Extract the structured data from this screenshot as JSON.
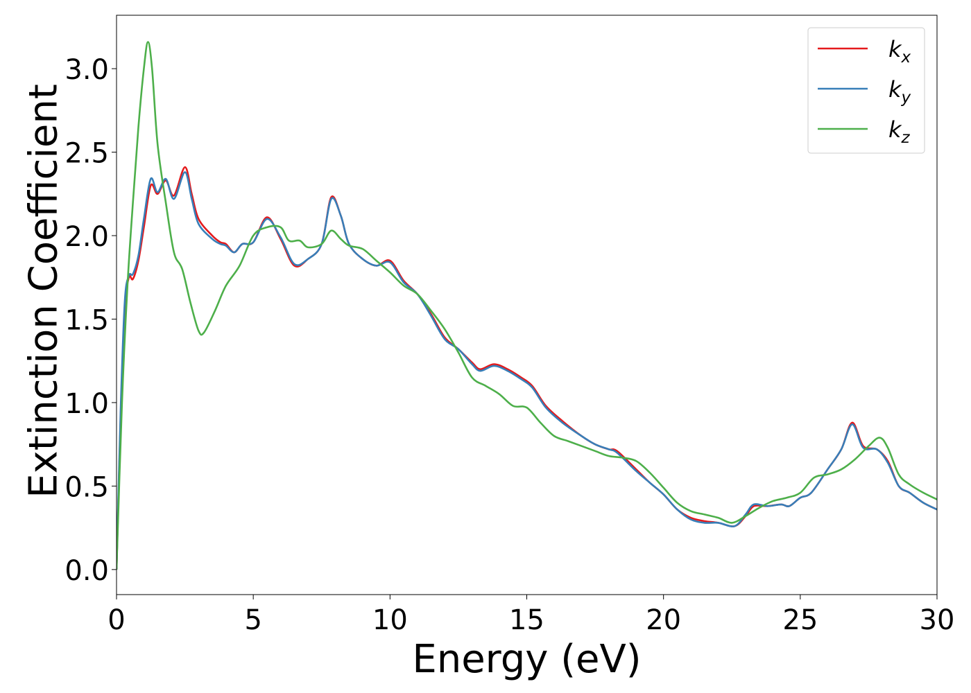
{
  "chart_data": {
    "type": "line",
    "title": "",
    "xlabel": "Energy (eV)",
    "ylabel": "Extinction Coefficient",
    "xlim": [
      0,
      30
    ],
    "ylim": [
      -0.15,
      3.32
    ],
    "xticks": [
      0,
      5,
      10,
      15,
      20,
      25,
      30
    ],
    "xtick_labels": [
      "0",
      "5",
      "10",
      "15",
      "20",
      "25",
      "30"
    ],
    "yticks": [
      0.0,
      0.5,
      1.0,
      1.5,
      2.0,
      2.5,
      3.0
    ],
    "ytick_labels": [
      "0.0",
      "0.5",
      "1.0",
      "1.5",
      "2.0",
      "2.5",
      "3.0"
    ],
    "grid": false,
    "legend_position": "top-right",
    "series": [
      {
        "name": "k_x",
        "legend_base": "k",
        "legend_sub": "x",
        "color": "#e41a1c",
        "points": [
          [
            0,
            0
          ],
          [
            0.15,
            0.9
          ],
          [
            0.3,
            1.55
          ],
          [
            0.45,
            1.75
          ],
          [
            0.6,
            1.74
          ],
          [
            0.8,
            1.85
          ],
          [
            1.0,
            2.05
          ],
          [
            1.25,
            2.3
          ],
          [
            1.5,
            2.25
          ],
          [
            1.8,
            2.33
          ],
          [
            2.1,
            2.24
          ],
          [
            2.5,
            2.41
          ],
          [
            2.75,
            2.25
          ],
          [
            3.0,
            2.1
          ],
          [
            3.5,
            2.0
          ],
          [
            3.8,
            1.96
          ],
          [
            4.0,
            1.95
          ],
          [
            4.3,
            1.9
          ],
          [
            4.6,
            1.95
          ],
          [
            5.0,
            1.96
          ],
          [
            5.5,
            2.11
          ],
          [
            6.0,
            1.98
          ],
          [
            6.5,
            1.82
          ],
          [
            7.0,
            1.86
          ],
          [
            7.5,
            1.95
          ],
          [
            7.85,
            2.23
          ],
          [
            8.2,
            2.12
          ],
          [
            8.5,
            1.95
          ],
          [
            9.0,
            1.86
          ],
          [
            9.5,
            1.82
          ],
          [
            10.0,
            1.85
          ],
          [
            10.5,
            1.73
          ],
          [
            11.0,
            1.65
          ],
          [
            11.5,
            1.53
          ],
          [
            12.0,
            1.39
          ],
          [
            12.5,
            1.32
          ],
          [
            13.0,
            1.24
          ],
          [
            13.3,
            1.2
          ],
          [
            13.8,
            1.23
          ],
          [
            14.3,
            1.2
          ],
          [
            14.8,
            1.15
          ],
          [
            15.2,
            1.1
          ],
          [
            15.7,
            0.98
          ],
          [
            16.3,
            0.89
          ],
          [
            17.0,
            0.8
          ],
          [
            17.5,
            0.75
          ],
          [
            18.0,
            0.72
          ],
          [
            18.3,
            0.71
          ],
          [
            19.0,
            0.6
          ],
          [
            19.5,
            0.52
          ],
          [
            20.0,
            0.45
          ],
          [
            20.5,
            0.36
          ],
          [
            21.0,
            0.31
          ],
          [
            21.5,
            0.29
          ],
          [
            22.0,
            0.28
          ],
          [
            22.6,
            0.26
          ],
          [
            23.0,
            0.32
          ],
          [
            23.3,
            0.38
          ],
          [
            23.8,
            0.38
          ],
          [
            24.3,
            0.39
          ],
          [
            24.6,
            0.38
          ],
          [
            25.0,
            0.43
          ],
          [
            25.4,
            0.46
          ],
          [
            26.0,
            0.6
          ],
          [
            26.5,
            0.72
          ],
          [
            26.9,
            0.88
          ],
          [
            27.3,
            0.74
          ],
          [
            27.8,
            0.72
          ],
          [
            28.2,
            0.65
          ],
          [
            28.6,
            0.5
          ],
          [
            29.0,
            0.46
          ],
          [
            29.5,
            0.4
          ],
          [
            30.0,
            0.36
          ]
        ]
      },
      {
        "name": "k_y",
        "legend_base": "k",
        "legend_sub": "y",
        "color": "#377eb8",
        "points": [
          [
            0,
            0
          ],
          [
            0.15,
            0.95
          ],
          [
            0.3,
            1.6
          ],
          [
            0.45,
            1.76
          ],
          [
            0.6,
            1.77
          ],
          [
            0.8,
            1.88
          ],
          [
            1.0,
            2.1
          ],
          [
            1.25,
            2.34
          ],
          [
            1.5,
            2.26
          ],
          [
            1.8,
            2.34
          ],
          [
            2.1,
            2.22
          ],
          [
            2.5,
            2.38
          ],
          [
            2.75,
            2.22
          ],
          [
            3.0,
            2.07
          ],
          [
            3.5,
            1.98
          ],
          [
            3.8,
            1.95
          ],
          [
            4.0,
            1.94
          ],
          [
            4.3,
            1.9
          ],
          [
            4.6,
            1.95
          ],
          [
            5.0,
            1.96
          ],
          [
            5.5,
            2.1
          ],
          [
            6.0,
            1.99
          ],
          [
            6.5,
            1.83
          ],
          [
            7.0,
            1.86
          ],
          [
            7.5,
            1.95
          ],
          [
            7.85,
            2.22
          ],
          [
            8.2,
            2.12
          ],
          [
            8.5,
            1.95
          ],
          [
            9.0,
            1.86
          ],
          [
            9.5,
            1.82
          ],
          [
            10.0,
            1.84
          ],
          [
            10.5,
            1.72
          ],
          [
            11.0,
            1.65
          ],
          [
            11.5,
            1.52
          ],
          [
            12.0,
            1.38
          ],
          [
            12.5,
            1.32
          ],
          [
            13.0,
            1.23
          ],
          [
            13.3,
            1.19
          ],
          [
            13.8,
            1.22
          ],
          [
            14.3,
            1.19
          ],
          [
            14.8,
            1.14
          ],
          [
            15.2,
            1.09
          ],
          [
            15.7,
            0.97
          ],
          [
            16.3,
            0.88
          ],
          [
            17.0,
            0.8
          ],
          [
            17.5,
            0.75
          ],
          [
            18.0,
            0.72
          ],
          [
            18.3,
            0.7
          ],
          [
            19.0,
            0.59
          ],
          [
            19.5,
            0.52
          ],
          [
            20.0,
            0.45
          ],
          [
            20.5,
            0.36
          ],
          [
            21.0,
            0.3
          ],
          [
            21.5,
            0.28
          ],
          [
            22.0,
            0.28
          ],
          [
            22.6,
            0.26
          ],
          [
            23.0,
            0.33
          ],
          [
            23.3,
            0.39
          ],
          [
            23.8,
            0.38
          ],
          [
            24.3,
            0.39
          ],
          [
            24.6,
            0.38
          ],
          [
            25.0,
            0.43
          ],
          [
            25.4,
            0.46
          ],
          [
            26.0,
            0.6
          ],
          [
            26.5,
            0.72
          ],
          [
            26.9,
            0.87
          ],
          [
            27.3,
            0.73
          ],
          [
            27.8,
            0.72
          ],
          [
            28.2,
            0.64
          ],
          [
            28.6,
            0.5
          ],
          [
            29.0,
            0.46
          ],
          [
            29.5,
            0.4
          ],
          [
            30.0,
            0.36
          ]
        ]
      },
      {
        "name": "k_z",
        "legend_base": "k",
        "legend_sub": "z",
        "color": "#4daf4a",
        "points": [
          [
            0,
            0
          ],
          [
            0.2,
            1.0
          ],
          [
            0.4,
            1.7
          ],
          [
            0.6,
            2.2
          ],
          [
            0.8,
            2.65
          ],
          [
            1.0,
            3.0
          ],
          [
            1.15,
            3.16
          ],
          [
            1.3,
            3.0
          ],
          [
            1.5,
            2.55
          ],
          [
            1.8,
            2.2
          ],
          [
            2.1,
            1.9
          ],
          [
            2.4,
            1.8
          ],
          [
            2.7,
            1.6
          ],
          [
            3.0,
            1.43
          ],
          [
            3.2,
            1.42
          ],
          [
            3.6,
            1.55
          ],
          [
            4.0,
            1.7
          ],
          [
            4.5,
            1.82
          ],
          [
            5.0,
            2.0
          ],
          [
            5.5,
            2.05
          ],
          [
            6.0,
            2.05
          ],
          [
            6.3,
            1.97
          ],
          [
            6.7,
            1.97
          ],
          [
            7.0,
            1.93
          ],
          [
            7.5,
            1.95
          ],
          [
            7.85,
            2.03
          ],
          [
            8.2,
            1.98
          ],
          [
            8.5,
            1.94
          ],
          [
            9.0,
            1.92
          ],
          [
            9.5,
            1.85
          ],
          [
            10.0,
            1.78
          ],
          [
            10.5,
            1.7
          ],
          [
            11.0,
            1.65
          ],
          [
            11.5,
            1.55
          ],
          [
            12.0,
            1.44
          ],
          [
            12.5,
            1.3
          ],
          [
            13.0,
            1.15
          ],
          [
            13.5,
            1.1
          ],
          [
            14.0,
            1.05
          ],
          [
            14.5,
            0.98
          ],
          [
            15.0,
            0.97
          ],
          [
            15.5,
            0.88
          ],
          [
            16.0,
            0.8
          ],
          [
            16.5,
            0.77
          ],
          [
            17.0,
            0.74
          ],
          [
            17.5,
            0.71
          ],
          [
            18.0,
            0.68
          ],
          [
            18.5,
            0.67
          ],
          [
            19.0,
            0.65
          ],
          [
            19.5,
            0.58
          ],
          [
            20.0,
            0.49
          ],
          [
            20.5,
            0.4
          ],
          [
            21.0,
            0.35
          ],
          [
            21.5,
            0.33
          ],
          [
            22.0,
            0.31
          ],
          [
            22.5,
            0.28
          ],
          [
            23.0,
            0.32
          ],
          [
            23.5,
            0.37
          ],
          [
            24.0,
            0.41
          ],
          [
            24.5,
            0.43
          ],
          [
            25.0,
            0.46
          ],
          [
            25.5,
            0.55
          ],
          [
            26.0,
            0.57
          ],
          [
            26.5,
            0.6
          ],
          [
            27.0,
            0.66
          ],
          [
            27.5,
            0.74
          ],
          [
            27.9,
            0.79
          ],
          [
            28.2,
            0.73
          ],
          [
            28.6,
            0.57
          ],
          [
            29.0,
            0.51
          ],
          [
            29.5,
            0.46
          ],
          [
            30.0,
            0.42
          ]
        ]
      }
    ]
  }
}
